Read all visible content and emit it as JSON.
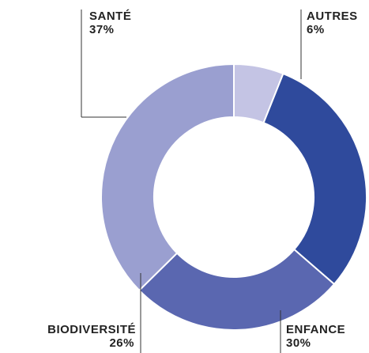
{
  "chart_data": {
    "type": "pie",
    "categories": [
      "AUTRES",
      "ENFANCE",
      "BIODIVERSITÉ",
      "SANTÉ"
    ],
    "values": [
      6,
      30,
      26,
      37
    ],
    "value_labels": [
      "6%",
      "30%",
      "26%",
      "37%"
    ],
    "colors": [
      "#c4c4e4",
      "#2f4a9c",
      "#5a67b0",
      "#9a9fd0"
    ],
    "donut": true
  }
}
